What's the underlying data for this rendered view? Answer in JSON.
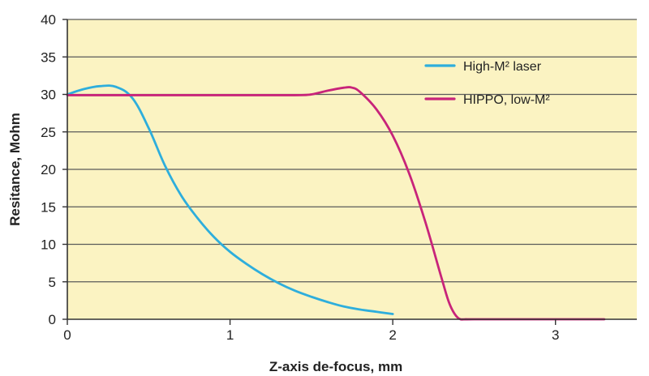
{
  "chart_data": {
    "type": "line",
    "title": "",
    "xlabel": "Z-axis de-focus, mm",
    "ylabel": "Resitance, Mohm",
    "xlim": [
      0,
      3.5
    ],
    "ylim": [
      0,
      40
    ],
    "x_ticks": [
      "0",
      "1",
      "2",
      "3"
    ],
    "x_tick_values": [
      0,
      1,
      2,
      3
    ],
    "y_ticks": [
      "0",
      "5",
      "10",
      "15",
      "20",
      "25",
      "30",
      "35",
      "40"
    ],
    "y_tick_values": [
      0,
      5,
      10,
      15,
      20,
      25,
      30,
      35,
      40
    ],
    "grid": "horizontal",
    "legend_position": "top-right",
    "colors": {
      "plot_background": "#fbf3c2",
      "gridline": "#5a5a5a",
      "axis": "#333333"
    },
    "series": [
      {
        "name": "High-M² laser",
        "color": "#2eaedc",
        "x": [
          0,
          0.1,
          0.2,
          0.3,
          0.4,
          0.5,
          0.6,
          0.7,
          0.8,
          0.9,
          1.0,
          1.1,
          1.2,
          1.3,
          1.4,
          1.5,
          1.6,
          1.7,
          1.8,
          1.9,
          2.0
        ],
        "y": [
          30,
          30.7,
          31.1,
          31.0,
          29.5,
          25.5,
          20.5,
          16.5,
          13.5,
          11.0,
          9.0,
          7.4,
          6.0,
          4.8,
          3.8,
          3.0,
          2.3,
          1.7,
          1.3,
          1.0,
          0.7
        ]
      },
      {
        "name": "HIPPO, low-M²",
        "color": "#c8247a",
        "x": [
          0,
          0.5,
          1.0,
          1.4,
          1.5,
          1.6,
          1.7,
          1.75,
          1.8,
          1.9,
          2.0,
          2.1,
          2.2,
          2.3,
          2.35,
          2.4,
          2.45,
          2.5,
          3.0,
          3.3
        ],
        "y": [
          29.9,
          29.9,
          29.9,
          29.9,
          30.0,
          30.5,
          30.9,
          30.9,
          30.3,
          28.0,
          24.5,
          19.5,
          13.0,
          5.5,
          2.0,
          0.2,
          0,
          0,
          0,
          0
        ]
      }
    ]
  }
}
